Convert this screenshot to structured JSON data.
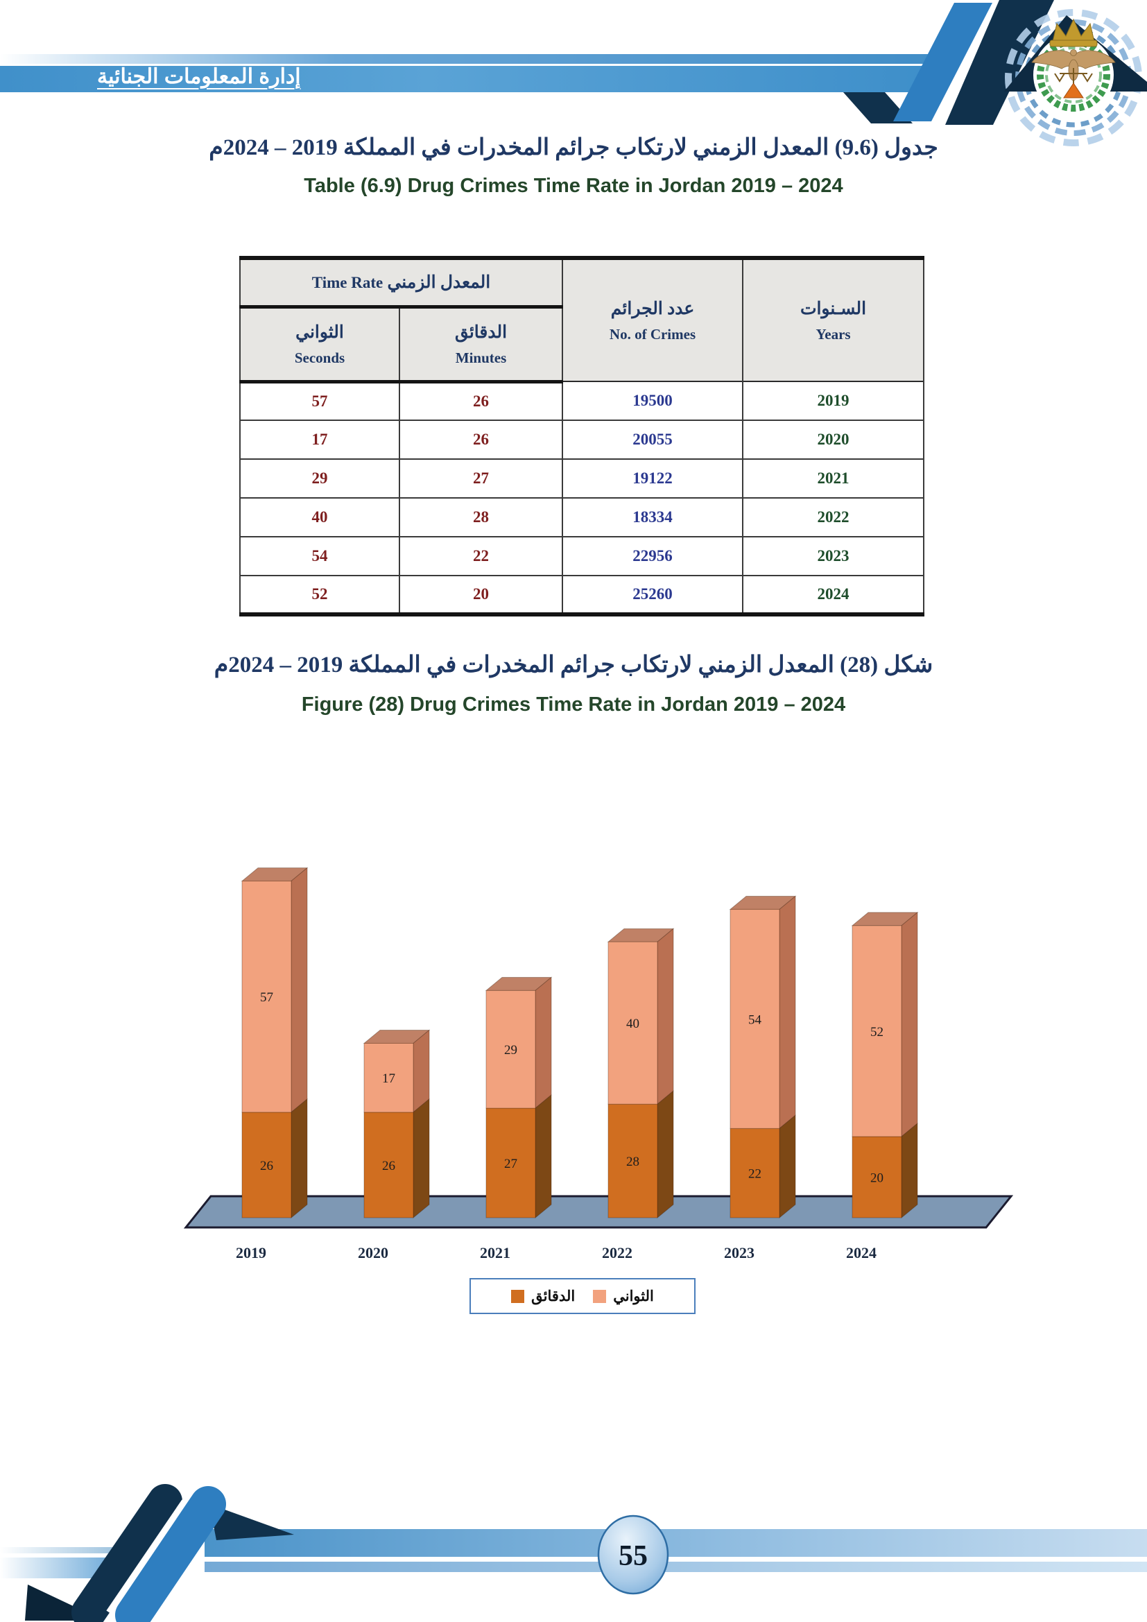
{
  "banner": {
    "department_ar": "إدارة المعلومات الجنائية"
  },
  "table_section": {
    "title_ar": "جدول (9.6) المعدل الزمني لارتكاب جرائم المخدرات في المملكة 2019 – 2024م",
    "title_en": "Table (6.9) Drug Crimes Time Rate in Jordan 2019 – 2024",
    "header": {
      "time_rate": {
        "en": "Time Rate",
        "ar": "المعدل الزمني"
      },
      "seconds": {
        "ar": "الثواني",
        "en": "Seconds"
      },
      "minutes": {
        "ar": "الدقائق",
        "en": "Minutes"
      },
      "crimes": {
        "ar": "عدد الجرائم",
        "en": "No. of Crimes"
      },
      "years": {
        "ar": "السـنوات",
        "en": "Years"
      }
    },
    "rows": [
      {
        "seconds": 57,
        "minutes": 26,
        "crimes": 19500,
        "year": 2019
      },
      {
        "seconds": 17,
        "minutes": 26,
        "crimes": 20055,
        "year": 2020
      },
      {
        "seconds": 29,
        "minutes": 27,
        "crimes": 19122,
        "year": 2021
      },
      {
        "seconds": 40,
        "minutes": 28,
        "crimes": 18334,
        "year": 2022
      },
      {
        "seconds": 54,
        "minutes": 22,
        "crimes": 22956,
        "year": 2023
      },
      {
        "seconds": 52,
        "minutes": 20,
        "crimes": 25260,
        "year": 2024
      }
    ]
  },
  "figure_section": {
    "title_ar": "شكل (28) المعدل الزمني لارتكاب جرائم المخدرات في المملكة 2019 – 2024م",
    "title_en": "Figure (28) Drug Crimes Time Rate in Jordan 2019 – 2024"
  },
  "chart_data": {
    "type": "bar",
    "stacked": true,
    "threed": true,
    "grid": false,
    "legend_position": "bottom",
    "categories": [
      "2019",
      "2020",
      "2021",
      "2022",
      "2023",
      "2024"
    ],
    "series": [
      {
        "name": "الدقائق",
        "values": [
          26,
          26,
          27,
          28,
          22,
          20
        ],
        "color_front": "#D06E20",
        "color_side": "#7D4815"
      },
      {
        "name": "الثواني",
        "values": [
          57,
          17,
          29,
          40,
          54,
          52
        ],
        "color_front": "#F2A27E",
        "color_side": "#BA7052",
        "color_top": "#C08166"
      }
    ],
    "value_labels": true,
    "floor_color": "#7E98B4"
  },
  "footer": {
    "page_number": "55"
  },
  "colors": {
    "title_ar": "#1F3864",
    "title_en": "#24462A",
    "seconds_minutes_text": "#7E1F1F",
    "crimes_text": "#2B3990",
    "years_text": "#1E4D2B",
    "banner_blue": "#4a97cf",
    "slash_blue": "#2E7EC0",
    "slash_navy": "#10314C",
    "legend_border": "#4a7ebb"
  }
}
